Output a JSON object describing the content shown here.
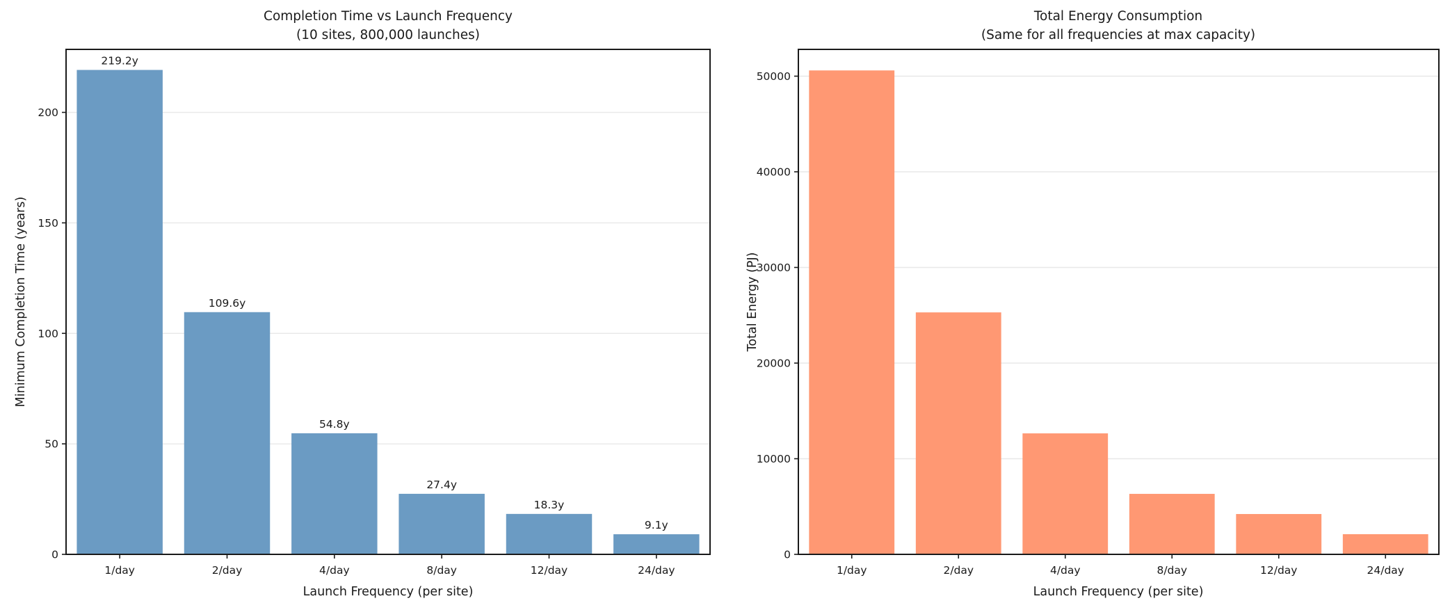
{
  "style": {
    "background": "#ffffff",
    "text_color": "#1a1a1a",
    "spine_color": "#1a1a1a",
    "grid_color": "#e8e8e8",
    "tick_color": "#1a1a1a"
  },
  "chart_data": [
    {
      "type": "bar",
      "title": "Completion Time vs Launch Frequency",
      "subtitle": "(10 sites, 800,000 launches)",
      "xlabel": "Launch Frequency (per site)",
      "ylabel": "Minimum Completion Time (years)",
      "categories": [
        "1/day",
        "2/day",
        "4/day",
        "8/day",
        "12/day",
        "24/day"
      ],
      "values": [
        219.2,
        109.6,
        54.8,
        27.4,
        18.3,
        9.1
      ],
      "bar_labels": [
        "219.2y",
        "109.6y",
        "54.8y",
        "27.4y",
        "18.3y",
        "9.1y"
      ],
      "yticks": [
        0,
        50,
        100,
        150,
        200
      ],
      "ytick_labels": [
        "0",
        "50",
        "100",
        "150",
        "200"
      ],
      "ylim": [
        0,
        228.5
      ],
      "bar_color": "#6B9BC3",
      "grid": "horizontal",
      "legend": "none"
    },
    {
      "type": "bar",
      "title": "Total Energy Consumption",
      "subtitle": "(Same for all frequencies at max capacity)",
      "xlabel": "Launch Frequency (per site)",
      "ylabel": "Total Energy (PJ)",
      "categories": [
        "1/day",
        "2/day",
        "4/day",
        "8/day",
        "12/day",
        "24/day"
      ],
      "values": [
        50600,
        25300,
        12650,
        6325,
        4217,
        2108
      ],
      "bar_labels": [],
      "yticks": [
        0,
        10000,
        20000,
        30000,
        40000,
        50000
      ],
      "ytick_labels": [
        "0",
        "10000",
        "20000",
        "30000",
        "40000",
        "50000"
      ],
      "ylim": [
        0,
        52800
      ],
      "bar_color": "#FF9873",
      "grid": "horizontal",
      "legend": "none"
    }
  ]
}
